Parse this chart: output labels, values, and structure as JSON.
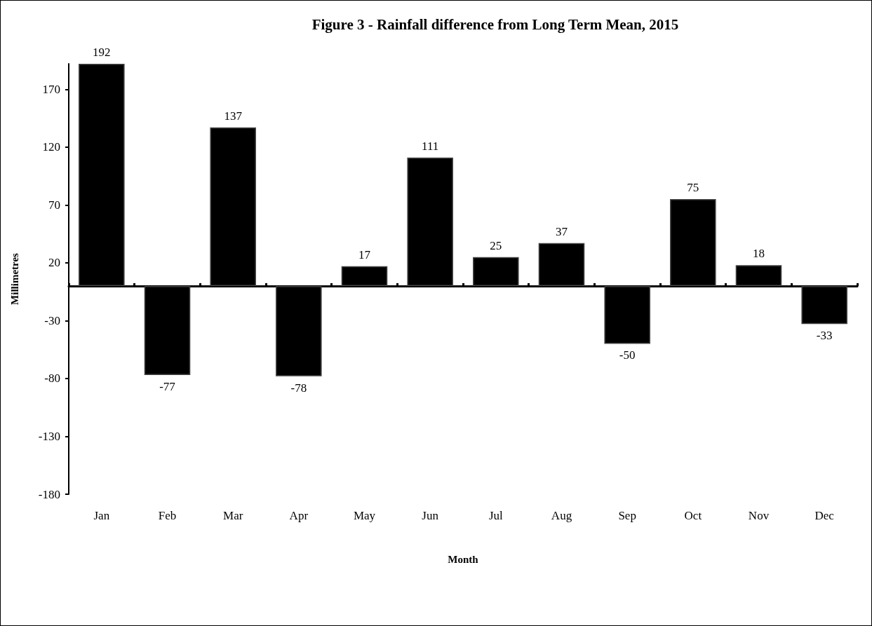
{
  "chart_data": {
    "type": "bar",
    "title": "Figure 3 - Rainfall difference from Long Term Mean, 2015",
    "xlabel": "Month",
    "ylabel": "Millimetres",
    "categories": [
      "Jan",
      "Feb",
      "Mar",
      "Apr",
      "May",
      "Jun",
      "Jul",
      "Aug",
      "Sep",
      "Oct",
      "Nov",
      "Dec"
    ],
    "values": [
      192,
      -77,
      137,
      -78,
      17,
      111,
      25,
      37,
      -50,
      75,
      18,
      -33
    ],
    "color": "#000000",
    "ylim": [
      -180,
      192
    ],
    "yticks": [
      -180,
      -130,
      -80,
      -30,
      20,
      70,
      120,
      170
    ],
    "data_labels": true,
    "grid": false
  }
}
